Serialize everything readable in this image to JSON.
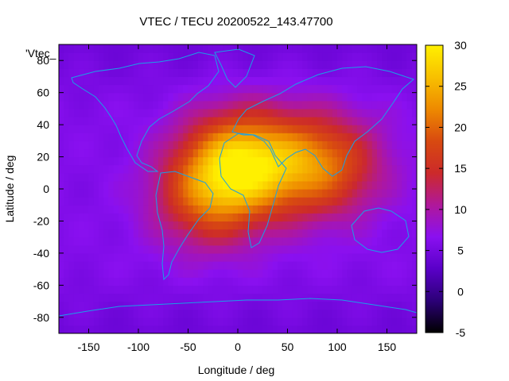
{
  "chart_data": {
    "type": "heatmap",
    "title": "VTEC / TECU 20200522_143.47700",
    "xlabel": "Longitude / deg",
    "ylabel": "Latitude / deg",
    "series_label": "'Vtec_",
    "xlim": [
      -180,
      180
    ],
    "ylim": [
      -90,
      90
    ],
    "x_ticks": [
      -150,
      -100,
      -50,
      0,
      50,
      100,
      150
    ],
    "y_ticks": [
      -80,
      -60,
      -40,
      -20,
      0,
      20,
      40,
      60,
      80
    ],
    "colorbar": {
      "range": [
        -5,
        30
      ],
      "ticks": [
        -5,
        0,
        5,
        10,
        15,
        20,
        25,
        30
      ],
      "palette": [
        "#000000",
        "#2c0078",
        "#5a00c8",
        "#8a10f0",
        "#b0189a",
        "#cc2a2a",
        "#d84a10",
        "#ee8a00",
        "#f8c000",
        "#fff000"
      ]
    },
    "coastline_color": "#1aa0e6",
    "field_model": {
      "background_tec": 6.0,
      "peaks": [
        {
          "lon": 0,
          "lat": 17,
          "tec": 27
        },
        {
          "lon": 60,
          "lat": 15,
          "tec": 18
        },
        {
          "lon": -30,
          "lat": -5,
          "tec": 19
        },
        {
          "lon": 100,
          "lat": 15,
          "tec": 15
        }
      ],
      "polar_low_tec": 4.5,
      "grid_step_deg": 5
    }
  }
}
